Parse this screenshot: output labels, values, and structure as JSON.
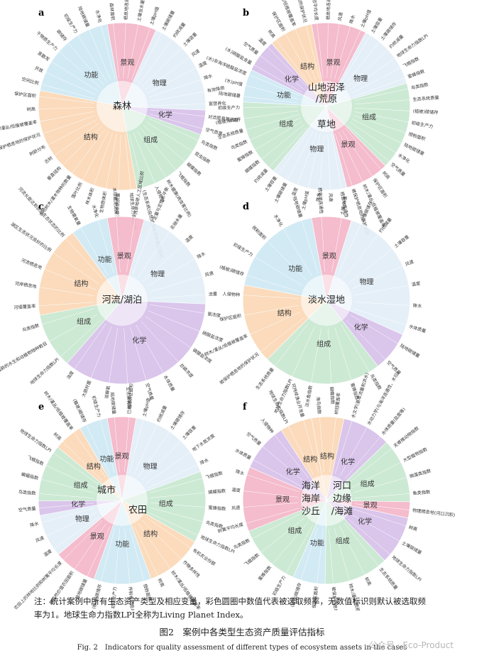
{
  "note": {
    "line1": "注：统计案例中所有生态资产类型及相应变量，彩色圆圈中数值代表被选取频率，无数值标识则默认被选取频",
    "line2": "率为1。地球生命力指数LPI全称为Living Planet Index。"
  },
  "caption": {
    "cn": "图2　案例中各类型生态资产质量评估指标",
    "en": "Fig. 2　Indicators for quality assessment of different types of ecosystem assets in the cases"
  },
  "watermark": "公众号 · Eco-Product",
  "panels": [
    {
      "letter": "a",
      "center": [
        "森林"
      ],
      "colors": [
        "#f4b7c8",
        "#d7c1ea",
        "#dceaf6",
        "#c8e8d1",
        "#fbd8b7",
        "#cfe9f4"
      ],
      "categories": [
        {
          "label": "景观",
          "color": "#f4b7c8",
          "items": [
            "森林面积",
            "栖息地连通性",
            "土壤含水量",
            "土壤pH值"
          ]
        },
        {
          "label": "物理",
          "color": "#e3eef8",
          "items": [
            "土壤碳储量",
            "约统减量",
            "土壤容重",
            "风速",
            "温度",
            "降水",
            "有效降雨",
            "富营养化"
          ]
        },
        {
          "label": "化学",
          "color": "#d7c1ea",
          "items": [
            "对流层臭氧浓度",
            "空气质量"
          ]
        },
        {
          "label": "组成",
          "color": "#c8e8d1",
          "items": [
            "鸟类指数",
            "昆虫指数",
            "蝴蝶指数",
            "飞蛾指数",
            "树木健康(病虫害比例)",
            "入侵物种",
            "(生态系统)自然或组水平的再生比例"
          ]
        },
        {
          "label": "结构",
          "color": "#fbd8b7",
          "items": [
            "地球生命力指数LPI",
            "生态系统质量",
            "生物质体积",
            "林木体积",
            "落叶比例",
            "本地树木/灌木物种的数量",
            "垂直结构",
            "古树",
            "树龄分布",
            "被保护栖息地的保护状况",
            "树木/灌丛/低植被覆盖率",
            "树高",
            "保护区面积"
          ]
        },
        {
          "label": "功能",
          "color": "#cfe9f4",
          "items": [
            "空间比例",
            "开放",
            "蒸散发",
            "干物质生产力",
            "碳储存",
            "初级生产力",
            "陆地碳储量",
            "水净化"
          ]
        }
      ]
    },
    {
      "letter": "b",
      "center": [
        "山地沼泽",
        "/荒原",
        "草地"
      ],
      "colors": [
        "#f4b7c8",
        "#d7c1ea",
        "#dceaf6",
        "#c8e8d1",
        "#fbd8b7",
        "#cfe9f4"
      ],
      "categories": [
        {
          "label": "景观",
          "color": "#f4b7c8",
          "items": [
            "树冠平均长度",
            "栖息地连通性",
            "风速",
            "降水",
            "土壤pH值"
          ]
        },
        {
          "label": "物理",
          "color": "#e3eef8",
          "items": [
            "土壤容重",
            "土壤碳储存",
            "约统减量",
            "地球生命力指数LPI",
            "飞蛾指数",
            "蜜蜂指数"
          ]
        },
        {
          "label": "组成",
          "color": "#c8e8d1",
          "items": [
            "鸟类指数",
            "生态系统质量",
            "(植被)碳储存",
            "初级生产力",
            "授粉面积",
            "陆地碳储量",
            "水净化",
            "空气质量"
          ]
        },
        {
          "label": "景观",
          "color": "#f4b7c8",
          "items": [
            "树高",
            "保护区面积",
            "树木/灌丛/低植被覆盖率",
            "被保护栖息地的保护状况"
          ]
        },
        {
          "label": "物理",
          "color": "#e3eef8",
          "items": [
            "栖息地连通性",
            "风速",
            "降水",
            "土壤pH值",
            "温度",
            "土壤碳储量",
            "土壤容重"
          ]
        },
        {
          "label": "组成",
          "color": "#c8e8d1",
          "items": [
            "约统减量",
            "蝴蝶指数",
            "蜜蜂指数",
            "鸟类指数",
            "生态系统质量",
            "(植被)碳储存",
            "初级生产力"
          ]
        },
        {
          "label": "功能",
          "color": "#cfe9f4",
          "items": [
            "陆地碳储量",
            "(水)pH值",
            "(水)非海洋硫酸盐浓度"
          ]
        },
        {
          "label": "化学",
          "color": "#d7c1ea",
          "items": [
            "(水)硝酸盐含量",
            "空气质量",
            "温度"
          ]
        },
        {
          "label": "结构",
          "color": "#fbd8b7",
          "items": [
            "树高",
            "保护区面积",
            "树木/灌丛/低植被覆盖率",
            "被保护栖息地的保护状况"
          ]
        }
      ]
    },
    {
      "letter": "c",
      "center": [
        "河流/湖泊"
      ],
      "colors": [
        "#f4b7c8",
        "#d7c1ea",
        "#dceaf6",
        "#c8e8d1",
        "#fbd8b7",
        "#cfe9f4"
      ],
      "categories": [
        {
          "label": "景观",
          "color": "#f4b7c8",
          "items": [
            "水坝截流比例",
            "河岸地带人工区域比例"
          ]
        },
        {
          "label": "物理",
          "color": "#e3eef8",
          "items": [
            "定量与定性水平衡",
            "总抽水量",
            "温度",
            "降水",
            "风速",
            "流量"
          ]
        },
        {
          "label": "化学",
          "color": "#d7c1ea",
          "items": [
            "氨浓度",
            "硝酸盐浓度",
            "磷酸盐浓度",
            "总磷浓度",
            "水体质量",
            "空气质量",
            "生化需氧量",
            "溶解氧",
            "大肠杆菌",
            "浊度"
          ]
        },
        {
          "label": "组成",
          "color": "#c8e8d1",
          "items": [
            "地球生命力指数LPI",
            "受威胁的水生和动植物物种数目",
            "鸟类指数"
          ]
        },
        {
          "label": "结构",
          "color": "#fbd8b7",
          "items": [
            "河堤覆盖率",
            "河岸栖息地",
            "河流栖息地",
            "湖区生态状况良好的比例",
            "河流长度达到良好生态状态的比例"
          ]
        },
        {
          "label": "功能",
          "color": "#cfe9f4",
          "items": [
            "生物需氧量",
            "水净化"
          ]
        }
      ]
    },
    {
      "letter": "d",
      "center": [
        "淡水湿地"
      ],
      "colors": [
        "#f4b7c8",
        "#d7c1ea",
        "#dceaf6",
        "#c8e8d1",
        "#fbd8b7",
        "#cfe9f4"
      ],
      "categories": [
        {
          "label": "景观",
          "color": "#f4b7c8",
          "items": [
            "栖息地连通性",
            "土壤pH值"
          ]
        },
        {
          "label": "物理",
          "color": "#e3eef8",
          "items": [
            "土壤碳储存",
            "约统减量",
            "土壤容重",
            "风速",
            "温度",
            "降水",
            "水体质量"
          ]
        },
        {
          "label": "化学",
          "color": "#d7c1ea",
          "items": [
            "陆地碳储量",
            "空气质量"
          ]
        },
        {
          "label": "组成",
          "color": "#c8e8d1",
          "items": [
            "鸟类指数",
            "蜜蜂指数",
            "蝴蝶指数",
            "淡水鱼指数",
            "地球生命力指数LPI",
            "生态系统质量"
          ]
        },
        {
          "label": "结构",
          "color": "#fbd8b7",
          "items": [
            "被保护栖息地的保护状况",
            "树木/灌丛/低植被覆盖率",
            "保护区面积",
            "人侵物种"
          ]
        },
        {
          "label": "功能",
          "color": "#cfe9f4",
          "items": [
            "(植被)碳储存",
            "初级生产力",
            "授粉面积",
            "水净化",
            "陆地碳储量"
          ]
        }
      ]
    },
    {
      "letter": "e",
      "center": [
        "城市",
        "农田"
      ],
      "colors": [
        "#f4b7c8",
        "#d7c1ea",
        "#dceaf6",
        "#c8e8d1",
        "#fbd8b7",
        "#cfe9f4"
      ],
      "categories": [
        {
          "label": "景观",
          "color": "#f4b7c8",
          "items": [
            "陆地碳储量",
            "已利用农业面积"
          ]
        },
        {
          "label": "物理",
          "color": "#e3eef8",
          "items": [
            "土壤pH值",
            "约统减量",
            "土壤碳储存",
            "土壤容重",
            "地下水氮浓度",
            "降水"
          ]
        },
        {
          "label": "组成",
          "color": "#c8e8d1",
          "items": [
            "飞蛾指数",
            "蝴蝶指数",
            "蜜蜂指数",
            "鸟类指数",
            "地球生命力指数LPI"
          ]
        },
        {
          "label": "结构",
          "color": "#fbd8b7",
          "items": [
            "有机农业份额",
            "作物多样性",
            "树木/灌丛/低植被覆盖率",
            "树高"
          ]
        },
        {
          "label": "功能",
          "color": "#cfe9f4",
          "items": [
            "授粉面积",
            "传粉者栖息地与授粉面积比例",
            "初级生产力",
            "(植被)碳储存"
          ]
        },
        {
          "label": "景观",
          "color": "#f4b7c8",
          "items": [
            "陆地碳储量",
            "高自然价值农田面积",
            "农田上的林地比例和树篱平均长度"
          ]
        },
        {
          "label": "物理",
          "color": "#e3eef8",
          "items": [
            "温度",
            "风速",
            "降水"
          ]
        },
        {
          "label": "化学",
          "color": "#d7c1ea",
          "items": [
            "空气质量"
          ]
        },
        {
          "label": "组成",
          "color": "#c8e8d1",
          "items": [
            "鸟类指数",
            "蝙蝠指数",
            "飞蛾指数",
            "地球生命力指数LPI"
          ]
        },
        {
          "label": "结构",
          "color": "#fbd8b7",
          "items": [
            "树高",
            "树木/灌丛/低植被覆盖率"
          ]
        },
        {
          "label": "功能",
          "color": "#cfe9f4",
          "items": [
            "(植被)碳储存",
            "初级生产力"
          ]
        }
      ]
    },
    {
      "letter": "f",
      "center": [
        "海洋",
        "河口",
        "海岸",
        "边缘",
        "沙丘",
        "/海滩"
      ],
      "colors": [
        "#f4b7c8",
        "#d7c1ea",
        "#dceaf6",
        "#c8e8d1",
        "#fbd8b7",
        "#cfe9f4"
      ],
      "categories": [
        {
          "label": "结构",
          "color": "#fbd8b7",
          "items": [
            "海鸟指数",
            "树冠覆盖率"
          ]
        },
        {
          "label": "化学",
          "color": "#d7c1ea",
          "items": [
            "水文学(基本流量和洪水)",
            "水动力学(与海洋连通性，水位)",
            "水体质量(盐度等)"
          ]
        },
        {
          "label": "组成",
          "color": "#c8e8d1",
          "items": [
            "无脊椎动物指数",
            "大型植物指数",
            "微藻类指数",
            "鱼类指数"
          ]
        },
        {
          "label": "景观",
          "color": "#f4b7c8",
          "items": [
            "物理栖息地(河口沉积)"
          ]
        },
        {
          "label": "化学",
          "color": "#d7c1ea",
          "items": [
            "树高",
            "土壤碳储量",
            "地球生命力指数LPI"
          ]
        },
        {
          "label": "组成",
          "color": "#c8e8d1",
          "items": [
            "生态系统质量",
            "树高",
            "树木/灌丛/低植被覆盖率",
            "被保护栖息地的保护状况"
          ]
        },
        {
          "label": "功能",
          "color": "#cfe9f4",
          "items": [
            "保护区面积",
            "(植被)碳储存"
          ]
        },
        {
          "label": "组成",
          "color": "#c8e8d1",
          "items": [
            "初级生产力",
            "蜜蜂指数",
            "飞蛾指数",
            "鸟类指数"
          ]
        },
        {
          "label": "景观",
          "color": "#f4b7c8",
          "items": [
            "树篱平均长度",
            "风速",
            "温度",
            "降水"
          ]
        },
        {
          "label": "化学",
          "color": "#d7c1ea",
          "items": [
            "水体质量",
            "空气质量",
            "入侵物种"
          ]
        },
        {
          "label": "结构",
          "color": "#fbd8b7",
          "items": [
            "地球生命力指数LPI",
            "可持续渔业开发量"
          ]
        }
      ]
    }
  ]
}
